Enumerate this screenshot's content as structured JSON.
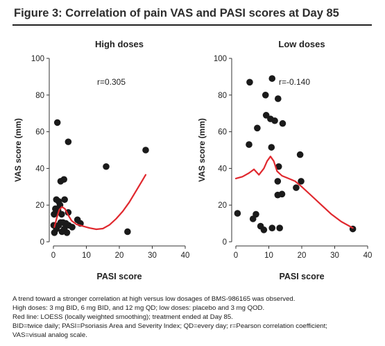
{
  "title": "Figure 3: Correlation of pain VAS and PASI scores at Day 85",
  "caption_lines": [
    "A trend toward a stronger correlation at high versus low dosages of BMS-986165 was observed.",
    "High doses: 3 mg BID, 6 mg BID, and 12 mg QD; low doses: placebo and 3 mg QOD.",
    "Red line: LOESS (locally weighted smoothing); treatment ended at Day 85.",
    "BID=twice daily; PASI=Psoriasis Area and Severity Index; QD=every day; r=Pearson correlation coefficient;",
    "VAS=visual analog scale."
  ],
  "colors": {
    "points": "#1a1a1a",
    "loess": "#e0282e",
    "axis": "#333333"
  },
  "chart_data": [
    {
      "type": "scatter",
      "title": "High doses",
      "xlabel": "PASI score",
      "ylabel": "VAS score (mm)",
      "xlim": [
        0,
        40
      ],
      "ylim": [
        0,
        100
      ],
      "xticks": [
        0,
        10,
        20,
        30,
        40
      ],
      "yticks": [
        0,
        20,
        40,
        60,
        80,
        100
      ],
      "annotation": "r=0.305",
      "points": [
        [
          1.2,
          65
        ],
        [
          4.5,
          54.5
        ],
        [
          2.2,
          33
        ],
        [
          3.2,
          34
        ],
        [
          16,
          41
        ],
        [
          28,
          50
        ],
        [
          0.2,
          15
        ],
        [
          0.6,
          18
        ],
        [
          0.9,
          23
        ],
        [
          1.6,
          22
        ],
        [
          3.4,
          23
        ],
        [
          2,
          20
        ],
        [
          1.4,
          17
        ],
        [
          2.5,
          15
        ],
        [
          4.5,
          16
        ],
        [
          0.1,
          9
        ],
        [
          0.3,
          5
        ],
        [
          0.9,
          7
        ],
        [
          1.6,
          9
        ],
        [
          2.2,
          10.5
        ],
        [
          2.9,
          10.5
        ],
        [
          3.3,
          7
        ],
        [
          4.1,
          5
        ],
        [
          4.6,
          9
        ],
        [
          5.7,
          8
        ],
        [
          2.6,
          5.5
        ],
        [
          7.3,
          12
        ],
        [
          8.2,
          10
        ],
        [
          22.5,
          5.5
        ],
        [
          3.8,
          10
        ]
      ],
      "loess": [
        [
          0.3,
          8
        ],
        [
          1,
          13
        ],
        [
          1.8,
          17.5
        ],
        [
          2.6,
          19
        ],
        [
          3.5,
          18
        ],
        [
          4.5,
          14.5
        ],
        [
          5.5,
          11.5
        ],
        [
          7,
          9.5
        ],
        [
          9,
          8.5
        ],
        [
          11,
          7.5
        ],
        [
          13,
          6.8
        ],
        [
          15,
          7.2
        ],
        [
          17,
          9.2
        ],
        [
          19,
          12.5
        ],
        [
          21,
          16.5
        ],
        [
          23,
          21.5
        ],
        [
          25,
          27.5
        ],
        [
          27,
          33.5
        ],
        [
          28,
          36.5
        ]
      ]
    },
    {
      "type": "scatter",
      "title": "Low doses",
      "xlabel": "PASI score",
      "ylabel": "VAS score (mm)",
      "xlim": [
        0,
        40
      ],
      "ylim": [
        0,
        100
      ],
      "xticks": [
        0,
        10,
        20,
        30,
        40
      ],
      "yticks": [
        0,
        20,
        40,
        60,
        80,
        100
      ],
      "annotation": "r=-0.140",
      "points": [
        [
          4.2,
          87
        ],
        [
          11,
          89
        ],
        [
          9,
          80
        ],
        [
          12.8,
          78
        ],
        [
          9.2,
          69
        ],
        [
          10.5,
          67
        ],
        [
          11.8,
          66
        ],
        [
          14.2,
          64.5
        ],
        [
          6.5,
          62
        ],
        [
          4,
          53
        ],
        [
          10.8,
          51.5
        ],
        [
          19.5,
          47.5
        ],
        [
          13,
          41
        ],
        [
          12.7,
          33
        ],
        [
          19.8,
          33
        ],
        [
          18.3,
          29.5
        ],
        [
          14,
          26
        ],
        [
          12.7,
          25.5
        ],
        [
          0.5,
          15.5
        ],
        [
          6.1,
          15
        ],
        [
          5.2,
          12.5
        ],
        [
          7.5,
          8.5
        ],
        [
          8.5,
          6.5
        ],
        [
          11,
          7.5
        ],
        [
          13.3,
          7.5
        ],
        [
          35.5,
          7
        ]
      ],
      "loess": [
        [
          0,
          34.5
        ],
        [
          2,
          35.5
        ],
        [
          4,
          37.5
        ],
        [
          5.5,
          39.5
        ],
        [
          7,
          36.5
        ],
        [
          8.5,
          40
        ],
        [
          9.5,
          44
        ],
        [
          10.5,
          46.5
        ],
        [
          11.5,
          44
        ],
        [
          12.5,
          38.5
        ],
        [
          14,
          36
        ],
        [
          16,
          34.5
        ],
        [
          18,
          33
        ],
        [
          20,
          30
        ],
        [
          23,
          25
        ],
        [
          26,
          20
        ],
        [
          29,
          15
        ],
        [
          32,
          11
        ],
        [
          35.5,
          7.5
        ]
      ]
    }
  ]
}
